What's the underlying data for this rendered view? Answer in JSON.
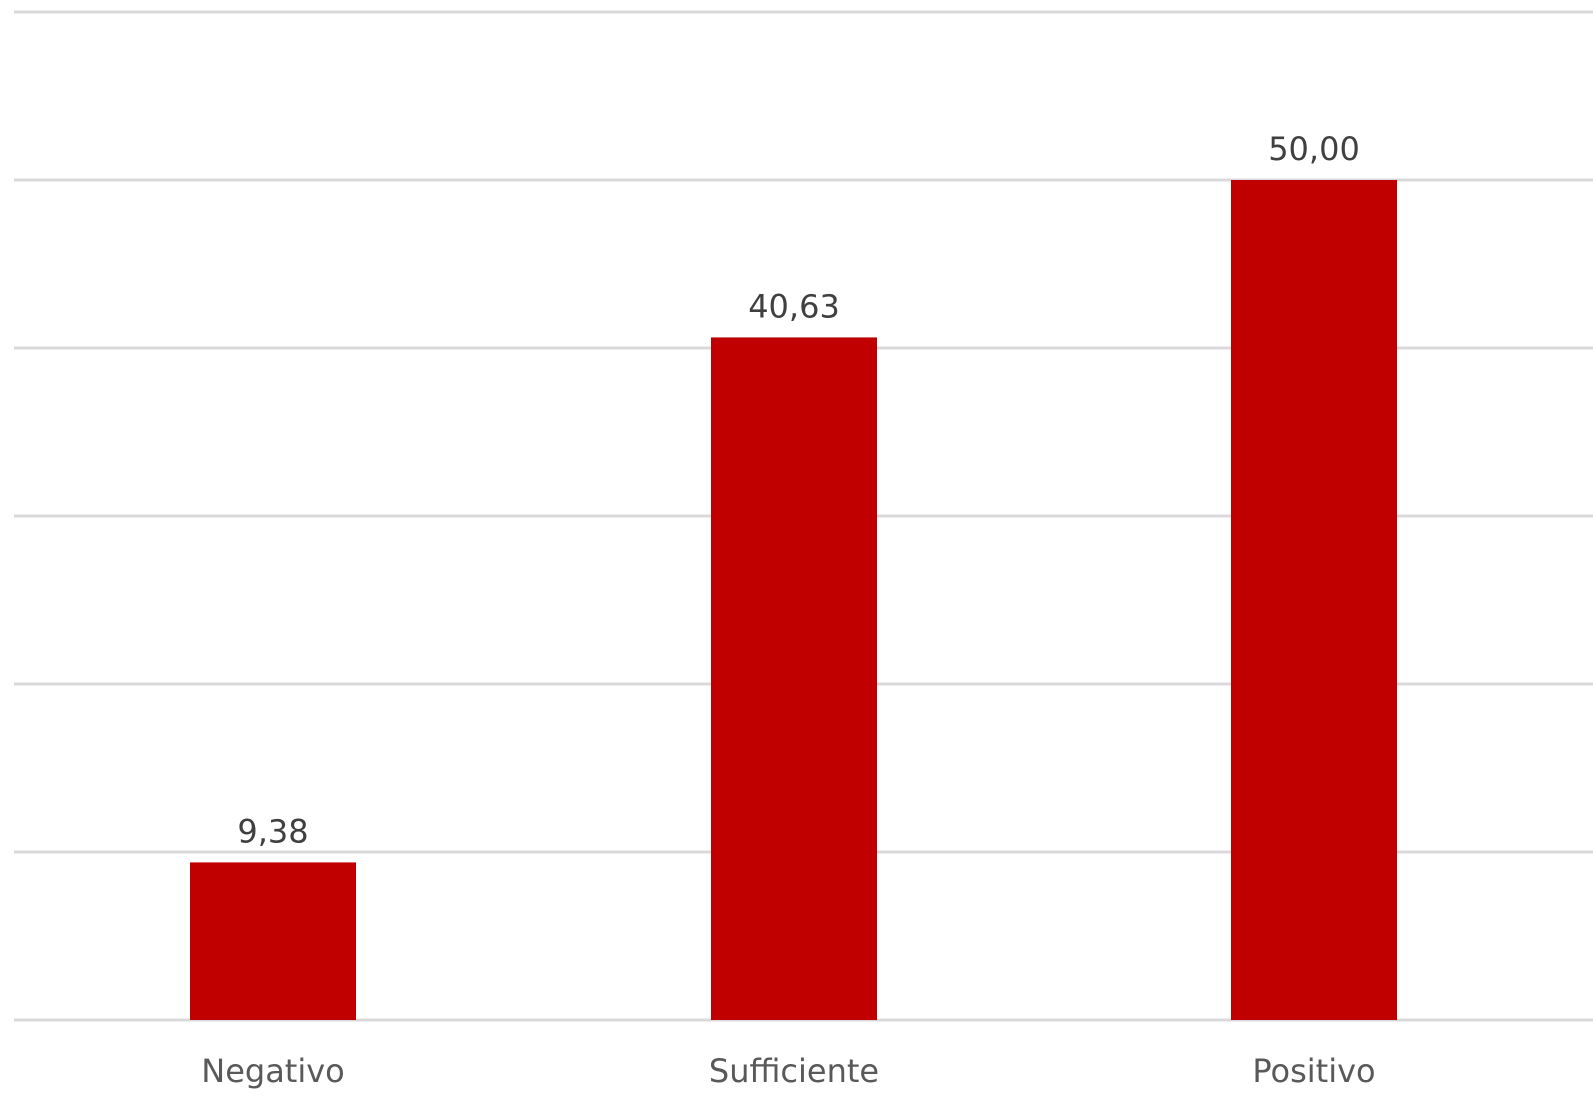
{
  "chart_data": {
    "type": "bar",
    "categories": [
      "Negativo",
      "Sufficiente",
      "Positivo"
    ],
    "values": [
      9.38,
      40.63,
      50.0
    ],
    "value_labels": [
      "9,38",
      "40,63",
      "50,00"
    ],
    "title": "",
    "xlabel": "",
    "ylabel": "",
    "ylim": [
      0,
      60
    ],
    "ytick_step": 10,
    "grid": true,
    "legend": "none",
    "bar_color": "#C00000",
    "grid_color": "#D9D9D9",
    "label_color": "#404040",
    "category_label_color": "#595959"
  }
}
